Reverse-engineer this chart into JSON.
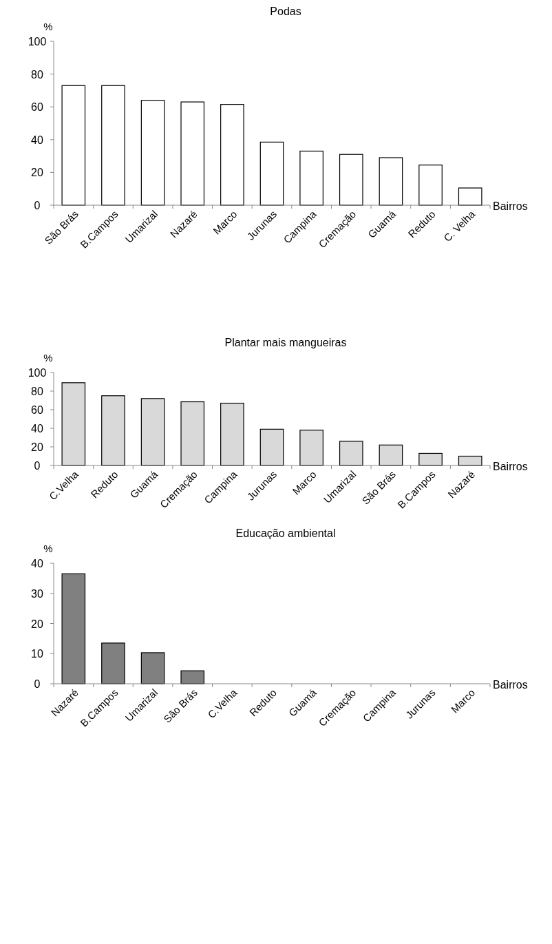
{
  "chart_data": [
    {
      "type": "bar",
      "title": "Podas",
      "ylabel": "%",
      "xlabel": "Bairros",
      "categories": [
        "São Brás",
        "B.Campos",
        "Umarizal",
        "Nazaré",
        "Marco",
        "Jurunas",
        "Campina",
        "Cremação",
        "Guamá",
        "Reduto",
        "C. Velha"
      ],
      "values": [
        73,
        73,
        64,
        63,
        61.5,
        38.5,
        33,
        31,
        29,
        24.5,
        10.5
      ],
      "color": "#ffffff",
      "ylim": [
        0,
        100
      ],
      "yticks": [
        0,
        20,
        40,
        60,
        80,
        100
      ]
    },
    {
      "type": "bar",
      "title": "Plantar mais mangueiras",
      "ylabel": "%",
      "xlabel": "Bairros",
      "categories": [
        "C.Velha",
        "Reduto",
        "Guamá",
        "Cremação",
        "Campina",
        "Jurunas",
        "Marco",
        "Umarizal",
        "São Brás",
        "B.Campos",
        "Nazaré"
      ],
      "values": [
        89,
        75,
        72,
        68.5,
        67,
        39,
        38,
        26,
        22,
        13,
        10
      ],
      "color": "#d9d9d9",
      "ylim": [
        0,
        100
      ],
      "yticks": [
        0,
        20,
        40,
        60,
        80,
        100
      ]
    },
    {
      "type": "bar",
      "title": "Educação ambiental",
      "ylabel": "%",
      "xlabel": "Bairros",
      "categories": [
        "Nazaré",
        "B.Campos",
        "Umarizal",
        "São Brás",
        "C.Velha",
        "Reduto",
        "Guamá",
        "Cremação",
        "Campina",
        "Jurunas",
        "Marco"
      ],
      "values": [
        36.5,
        13.5,
        10.3,
        4.3,
        0,
        0,
        0,
        0,
        0,
        0,
        0
      ],
      "color": "#808080",
      "ylim": [
        0,
        40
      ],
      "yticks": [
        0,
        10,
        20,
        30,
        40
      ]
    }
  ]
}
